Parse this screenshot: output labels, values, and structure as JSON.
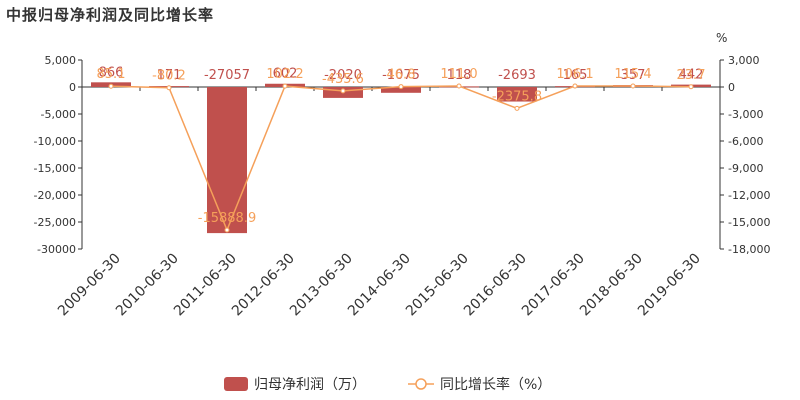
{
  "title": "中报归母净利润及同比增长率",
  "chart_data": {
    "type": "bar",
    "categories": [
      "2009-06-30",
      "2010-06-30",
      "2011-06-30",
      "2012-06-30",
      "2013-06-30",
      "2014-06-30",
      "2015-06-30",
      "2016-06-30",
      "2017-06-30",
      "2018-06-30",
      "2019-06-30"
    ],
    "series": [
      {
        "name": "归母净利润（万）",
        "type": "bar",
        "axis": "left",
        "color": "#c0504d",
        "values": [
          866,
          171,
          -27057,
          602,
          -2020,
          -1075,
          118,
          -2693,
          165,
          357,
          442
        ],
        "labels": [
          "866",
          "171",
          "-27057",
          "602",
          "-2020",
          "-1075",
          "118",
          "-2693",
          "165",
          "357",
          "442"
        ]
      },
      {
        "name": "同比增长率（%）",
        "type": "line",
        "axis": "right",
        "color": "#f5a05a",
        "values": [
          85.1,
          -80.2,
          -15888.9,
          102.2,
          -435.6,
          46.8,
          111.0,
          -2375.8,
          106.1,
          115.4,
          23.7
        ],
        "labels": [
          "85.1",
          "-80.2",
          "-15888.9",
          "102.2",
          "-435.6",
          "46.8",
          "111.0",
          "-2375.8",
          "106.1",
          "115.4",
          "23.7"
        ]
      }
    ],
    "y_left": {
      "min": -30000,
      "max": 5000,
      "ticks": [
        5000,
        0,
        -5000,
        -10000,
        -15000,
        -20000,
        -25000,
        -30000
      ],
      "tick_labels": [
        "5,000",
        "0",
        "-5,000",
        "-10,000",
        "-15,000",
        "-20,000",
        "-25,000",
        "-30000"
      ]
    },
    "y_right": {
      "min": -18000,
      "max": 3000,
      "unit": "%",
      "ticks": [
        3000,
        0,
        -3000,
        -6000,
        -9000,
        -12000,
        -15000,
        -18000
      ],
      "tick_labels": [
        "3,000",
        "0",
        "-3,000",
        "-6,000",
        "-9,000",
        "-12,000",
        "-15,000",
        "-18,000"
      ]
    },
    "grid": false,
    "legend_position": "bottom"
  }
}
